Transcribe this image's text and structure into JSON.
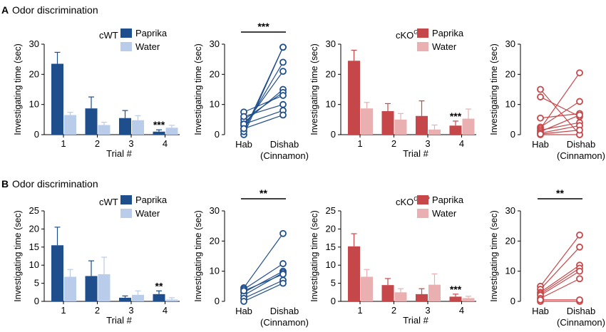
{
  "panels": [
    {
      "letter": "A",
      "title": "Odor discrimination",
      "bar_charts": [
        {
          "id": "A1",
          "type": "bar",
          "genotype_main": "cWT",
          "genotype_sup": "",
          "ylabel": "Investigating time (sec)",
          "xlabel": "Trial #",
          "ylim": [
            0,
            30
          ],
          "yticks": [
            0,
            10,
            20,
            30
          ],
          "categories": [
            "1",
            "2",
            "3",
            "4"
          ],
          "series": [
            {
              "name": "Paprika",
              "color": "#1f4e8c",
              "values": [
                23.5,
                8.7,
                5.5,
                1.0
              ],
              "errors": [
                3.8,
                3.8,
                2.5,
                0.6
              ]
            },
            {
              "name": "Water",
              "color": "#b9cdea",
              "values": [
                6.5,
                3.2,
                4.8,
                2.3
              ],
              "errors": [
                0.9,
                0.9,
                1.5,
                0.8
              ]
            }
          ],
          "significance": [
            {
              "category_index": 3,
              "label": "***"
            }
          ]
        },
        {
          "id": "A3",
          "type": "bar",
          "genotype_main": "cKO",
          "genotype_sup": "GAD",
          "ylabel": "Investigating time (sec)",
          "xlabel": "Trial #",
          "ylim": [
            0,
            30
          ],
          "yticks": [
            0,
            10,
            20,
            30
          ],
          "categories": [
            "1",
            "2",
            "3",
            "4"
          ],
          "series": [
            {
              "name": "Paprika",
              "color": "#c6474a",
              "values": [
                24.5,
                7.8,
                6.2,
                3.0
              ],
              "errors": [
                3.5,
                2.5,
                5.0,
                1.5
              ]
            },
            {
              "name": "Water",
              "color": "#eab0b1",
              "values": [
                8.7,
                5.0,
                1.7,
                5.3
              ],
              "errors": [
                2.0,
                2.0,
                1.5,
                3.2
              ]
            }
          ],
          "significance": [
            {
              "category_index": 3,
              "label": "***"
            }
          ]
        }
      ],
      "line_charts": [
        {
          "id": "A2",
          "type": "line",
          "color": "#1f4e8c",
          "ylabel": "Investigating time (sec)",
          "ylim": [
            0,
            30
          ],
          "yticks": [
            0,
            10,
            20,
            30
          ],
          "x_labels": [
            "Hab",
            "Dishab"
          ],
          "x_sublabel": "(Cinnamon)",
          "significance": "***",
          "pairs": [
            [
              0,
              29
            ],
            [
              1,
              29
            ],
            [
              2,
              24
            ],
            [
              3,
              21
            ],
            [
              4,
              15
            ],
            [
              5,
              14
            ],
            [
              7.5,
              13
            ],
            [
              6,
              10
            ],
            [
              3.5,
              8
            ],
            [
              2,
              6.5
            ]
          ]
        },
        {
          "id": "A4",
          "type": "line",
          "color": "#c6474a",
          "ylabel": "Investigating time (sec)",
          "ylim": [
            0,
            30
          ],
          "yticks": [
            0,
            10,
            20,
            30
          ],
          "x_labels": [
            "Hab",
            "Dishab"
          ],
          "x_sublabel": "(Cinnamon)",
          "significance": "",
          "pairs": [
            [
              15,
              0
            ],
            [
              12.5,
              6
            ],
            [
              5.5,
              7
            ],
            [
              2.5,
              11
            ],
            [
              2,
              20.5
            ],
            [
              1.5,
              4
            ],
            [
              1,
              6.5
            ],
            [
              0.5,
              3
            ],
            [
              0,
              0
            ],
            [
              0.2,
              1.5
            ]
          ]
        }
      ]
    },
    {
      "letter": "B",
      "title": "Odor discrimination",
      "bar_charts": [
        {
          "id": "B1",
          "type": "bar",
          "genotype_main": "cWT",
          "genotype_sup": "",
          "ylabel": "Investigating time (sec)",
          "xlabel": "Trial #",
          "ylim": [
            0,
            25
          ],
          "yticks": [
            0,
            5,
            10,
            15,
            20,
            25
          ],
          "categories": [
            "1",
            "2",
            "3",
            "4"
          ],
          "series": [
            {
              "name": "Paprika",
              "color": "#1f4e8c",
              "values": [
                15.5,
                7.0,
                1.0,
                2.0
              ],
              "errors": [
                5.0,
                4.2,
                0.5,
                0.9
              ]
            },
            {
              "name": "Water",
              "color": "#b9cdea",
              "values": [
                6.8,
                7.5,
                1.8,
                0.5
              ],
              "errors": [
                2.0,
                4.7,
                1.1,
                0.5
              ]
            }
          ],
          "significance": [
            {
              "category_index": 3,
              "label": "**"
            }
          ]
        },
        {
          "id": "B3",
          "type": "bar",
          "genotype_main": "cKO",
          "genotype_sup": "GFAP",
          "ylabel": "Investigating time (sec)",
          "xlabel": "Trial #",
          "ylim": [
            0,
            25
          ],
          "yticks": [
            0,
            5,
            10,
            15,
            20,
            25
          ],
          "categories": [
            "1",
            "2",
            "3",
            "4"
          ],
          "series": [
            {
              "name": "Paprika",
              "color": "#c6474a",
              "values": [
                15.2,
                4.5,
                2.0,
                1.3
              ],
              "errors": [
                3.5,
                1.8,
                1.5,
                0.7
              ]
            },
            {
              "name": "Water",
              "color": "#eab0b1",
              "values": [
                6.8,
                2.5,
                4.6,
                0.9
              ],
              "errors": [
                2.0,
                1.0,
                3.0,
                0.5
              ]
            }
          ],
          "significance": [
            {
              "category_index": 3,
              "label": "***"
            }
          ]
        }
      ],
      "line_charts": [
        {
          "id": "B2",
          "type": "line",
          "color": "#1f4e8c",
          "ylabel": "Investigating time (sec)",
          "ylim": [
            0,
            30
          ],
          "yticks": [
            0,
            10,
            20,
            30
          ],
          "x_labels": [
            "Hab",
            "Dishab"
          ],
          "x_sublabel": "(Cinnamon)",
          "significance": "**",
          "pairs": [
            [
              4.5,
              22.5
            ],
            [
              4,
              12.5
            ],
            [
              3,
              10
            ],
            [
              2,
              9.5
            ],
            [
              1,
              7
            ],
            [
              0,
              6
            ],
            [
              3.5,
              9
            ]
          ]
        },
        {
          "id": "B4",
          "type": "line",
          "color": "#c6474a",
          "ylabel": "Investigating time (sec)",
          "ylim": [
            0,
            30
          ],
          "yticks": [
            0,
            10,
            20,
            30
          ],
          "x_labels": [
            "Hab",
            "Dishab"
          ],
          "x_sublabel": "(Cinnamon)",
          "significance": "**",
          "pairs": [
            [
              5,
              22
            ],
            [
              4,
              18
            ],
            [
              3,
              12
            ],
            [
              2.5,
              11
            ],
            [
              2,
              10
            ],
            [
              1,
              7.5
            ],
            [
              0,
              0
            ],
            [
              0.5,
              0.5
            ]
          ]
        }
      ]
    }
  ],
  "chart_data": [
    {
      "id": "A1",
      "type": "bar",
      "title": "cWT",
      "categories": [
        "1",
        "2",
        "3",
        "4"
      ],
      "xlabel": "Trial #",
      "ylabel": "Investigating time (sec)",
      "ylim": [
        0,
        30
      ],
      "series": [
        {
          "name": "Paprika",
          "values": [
            23.5,
            8.7,
            5.5,
            1.0
          ]
        },
        {
          "name": "Water",
          "values": [
            6.5,
            3.2,
            4.8,
            2.3
          ]
        }
      ]
    },
    {
      "id": "A2",
      "type": "line",
      "x": [
        "Hab",
        "Dishab (Cinnamon)"
      ],
      "ylabel": "Investigating time (sec)",
      "ylim": [
        0,
        30
      ],
      "significance": "***"
    },
    {
      "id": "A3",
      "type": "bar",
      "title": "cKO GAD",
      "categories": [
        "1",
        "2",
        "3",
        "4"
      ],
      "xlabel": "Trial #",
      "ylabel": "Investigating time (sec)",
      "ylim": [
        0,
        30
      ],
      "series": [
        {
          "name": "Paprika",
          "values": [
            24.5,
            7.8,
            6.2,
            3.0
          ]
        },
        {
          "name": "Water",
          "values": [
            8.7,
            5.0,
            1.7,
            5.3
          ]
        }
      ]
    },
    {
      "id": "A4",
      "type": "line",
      "x": [
        "Hab",
        "Dishab (Cinnamon)"
      ],
      "ylabel": "Investigating time (sec)",
      "ylim": [
        0,
        30
      ],
      "significance": ""
    },
    {
      "id": "B1",
      "type": "bar",
      "title": "cWT",
      "categories": [
        "1",
        "2",
        "3",
        "4"
      ],
      "xlabel": "Trial #",
      "ylabel": "Investigating time (sec)",
      "ylim": [
        0,
        25
      ],
      "series": [
        {
          "name": "Paprika",
          "values": [
            15.5,
            7.0,
            1.0,
            2.0
          ]
        },
        {
          "name": "Water",
          "values": [
            6.8,
            7.5,
            1.8,
            0.5
          ]
        }
      ]
    },
    {
      "id": "B2",
      "type": "line",
      "x": [
        "Hab",
        "Dishab (Cinnamon)"
      ],
      "ylabel": "Investigating time (sec)",
      "ylim": [
        0,
        30
      ],
      "significance": "**"
    },
    {
      "id": "B3",
      "type": "bar",
      "title": "cKO GFAP",
      "categories": [
        "1",
        "2",
        "3",
        "4"
      ],
      "xlabel": "Trial #",
      "ylabel": "Investigating time (sec)",
      "ylim": [
        0,
        25
      ],
      "series": [
        {
          "name": "Paprika",
          "values": [
            15.2,
            4.5,
            2.0,
            1.3
          ]
        },
        {
          "name": "Water",
          "values": [
            6.8,
            2.5,
            4.6,
            0.9
          ]
        }
      ]
    },
    {
      "id": "B4",
      "type": "line",
      "x": [
        "Hab",
        "Dishab (Cinnamon)"
      ],
      "ylabel": "Investigating time (sec)",
      "ylim": [
        0,
        30
      ],
      "significance": "**"
    }
  ]
}
